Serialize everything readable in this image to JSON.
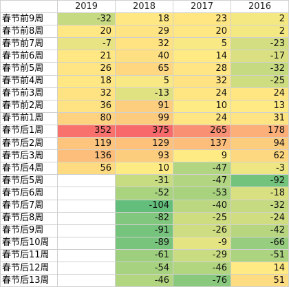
{
  "columns": [
    "2019",
    "2018",
    "2017",
    "2016"
  ],
  "rows": [
    {
      "label": "春节前9周",
      "values": [
        "-32",
        "18",
        "23",
        "2"
      ]
    },
    {
      "label": "春节前8周",
      "values": [
        "20",
        "29",
        "20",
        "2"
      ]
    },
    {
      "label": "春节前7周",
      "values": [
        "-7",
        "32",
        "5",
        "-23"
      ]
    },
    {
      "label": "春节前6周",
      "values": [
        "21",
        "40",
        "14",
        "-17"
      ]
    },
    {
      "label": "春节前5周",
      "values": [
        "26",
        "65",
        "28",
        "-32"
      ]
    },
    {
      "label": "春节前4周",
      "values": [
        "18",
        "5",
        "32",
        "-25"
      ]
    },
    {
      "label": "春节前3周",
      "values": [
        "32",
        "-13",
        "24",
        "24"
      ]
    },
    {
      "label": "春节前2周",
      "values": [
        "36",
        "91",
        "10",
        "13"
      ]
    },
    {
      "label": "春节前1周",
      "values": [
        "80",
        "99",
        "24",
        "31"
      ]
    },
    {
      "label": "春节后1周",
      "values": [
        "352",
        "375",
        "265",
        "178"
      ]
    },
    {
      "label": "春节后2周",
      "values": [
        "119",
        "129",
        "137",
        "94"
      ]
    },
    {
      "label": "春节后3周",
      "values": [
        "136",
        "93",
        "9",
        "62"
      ]
    },
    {
      "label": "春节后4周",
      "values": [
        "56",
        "10",
        "-47",
        "-3"
      ]
    },
    {
      "label": "春节后5周",
      "values": [
        "",
        "-31",
        "-47",
        "-92"
      ]
    },
    {
      "label": "春节后6周",
      "values": [
        "",
        "-52",
        "-53",
        "-18"
      ]
    },
    {
      "label": "春节后7周",
      "values": [
        "",
        "-104",
        "-40",
        "-32"
      ]
    },
    {
      "label": "春节后8周",
      "values": [
        "",
        "-82",
        "-25",
        "-24"
      ]
    },
    {
      "label": "春节后9周",
      "values": [
        "",
        "-91",
        "-26",
        "-42"
      ]
    },
    {
      "label": "春节后10周",
      "values": [
        "",
        "-89",
        "-9",
        "-66"
      ]
    },
    {
      "label": "春节后11周",
      "values": [
        "",
        "-61",
        "-29",
        "-51"
      ]
    },
    {
      "label": "春节后12周",
      "values": [
        "",
        "-54",
        "-46",
        "14"
      ]
    },
    {
      "label": "春节后13周",
      "values": [
        "",
        "-46",
        "-76",
        "51"
      ]
    }
  ],
  "color_scale": {
    "min": "#63be7b",
    "mid": "#ffeb84",
    "max": "#f8696b"
  }
}
